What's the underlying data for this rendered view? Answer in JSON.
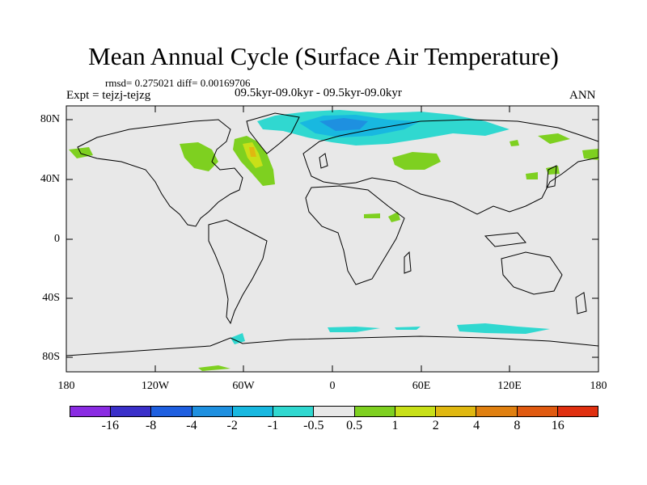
{
  "title": "Mean Annual Cycle (Surface Air Temperature)",
  "stats": "rmsd= 0.275021 diff= 0.00169706",
  "experiment": "Expt = tejzj-tejzg",
  "period": "09.5kyr-09.0kyr - 09.5kyr-09.0kyr",
  "season": "ANN",
  "lat_labels": [
    "80N",
    "40N",
    "0",
    "40S",
    "80S"
  ],
  "lon_labels": [
    "180",
    "120W",
    "60W",
    "0",
    "60E",
    "120E",
    "180"
  ],
  "colorbar": {
    "labels": [
      "-16",
      "-8",
      "-4",
      "-2",
      "-1",
      "-0.5",
      "0.5",
      "1",
      "2",
      "4",
      "8",
      "16"
    ],
    "colors": [
      "#8a2be2",
      "#3a2fc9",
      "#1e5fe0",
      "#1e90e0",
      "#18b8e0",
      "#30d8d0",
      "#e8e8e8",
      "#7ed020",
      "#c8e018",
      "#e0b810",
      "#e08010",
      "#e05a10",
      "#e03010"
    ]
  },
  "colors": {
    "ocean_bg": "#e8e8e8",
    "coast": "#000000"
  }
}
